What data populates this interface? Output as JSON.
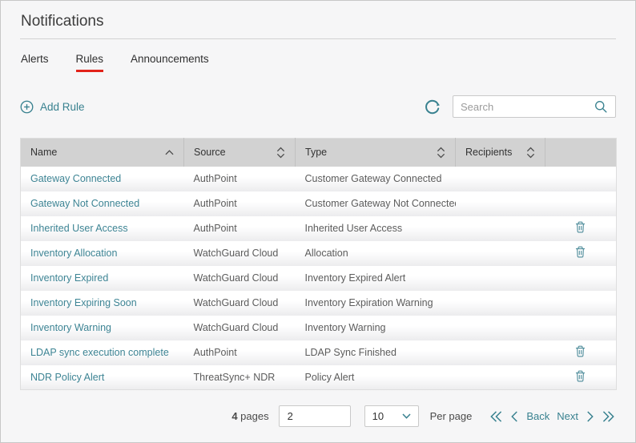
{
  "page": {
    "title": "Notifications"
  },
  "tabs": [
    {
      "label": "Alerts",
      "active": false
    },
    {
      "label": "Rules",
      "active": true
    },
    {
      "label": "Announcements",
      "active": false
    }
  ],
  "toolbar": {
    "add_rule_label": "Add Rule",
    "search_placeholder": "Search"
  },
  "table": {
    "columns": [
      {
        "label": "Name",
        "sort": "asc"
      },
      {
        "label": "Source",
        "sort": "both"
      },
      {
        "label": "Type",
        "sort": "both"
      },
      {
        "label": "Recipients",
        "sort": "both"
      },
      {
        "label": "",
        "sort": "none"
      }
    ],
    "rows": [
      {
        "name": "Gateway Connected",
        "source": "AuthPoint",
        "type": "Customer Gateway Connected",
        "recipients": "",
        "deletable": false
      },
      {
        "name": "Gateway Not Connected",
        "source": "AuthPoint",
        "type": "Customer Gateway Not Connected",
        "recipients": "",
        "deletable": false
      },
      {
        "name": "Inherited User Access",
        "source": "AuthPoint",
        "type": "Inherited User Access",
        "recipients": "",
        "deletable": true
      },
      {
        "name": "Inventory Allocation",
        "source": "WatchGuard Cloud",
        "type": "Allocation",
        "recipients": "",
        "deletable": true
      },
      {
        "name": "Inventory Expired",
        "source": "WatchGuard Cloud",
        "type": "Inventory Expired Alert",
        "recipients": "",
        "deletable": false
      },
      {
        "name": "Inventory Expiring Soon",
        "source": "WatchGuard Cloud",
        "type": "Inventory Expiration Warning",
        "recipients": "",
        "deletable": false
      },
      {
        "name": "Inventory Warning",
        "source": "WatchGuard Cloud",
        "type": "Inventory Warning",
        "recipients": "",
        "deletable": false
      },
      {
        "name": "LDAP sync execution complete",
        "source": "AuthPoint",
        "type": "LDAP Sync Finished",
        "recipients": "",
        "deletable": true
      },
      {
        "name": "NDR Policy Alert",
        "source": "ThreatSync+ NDR",
        "type": "Policy Alert",
        "recipients": "",
        "deletable": true
      }
    ]
  },
  "pagination": {
    "pages_count": "4",
    "pages_label": "pages",
    "current_page": "2",
    "per_page_value": "10",
    "per_page_label": "Per page",
    "back_label": "Back",
    "next_label": "Next"
  },
  "colors": {
    "accent_teal": "#38818F",
    "link_teal": "#3D8494",
    "active_tab_red": "#E2231A",
    "table_header_gray": "#D2D2D2"
  }
}
